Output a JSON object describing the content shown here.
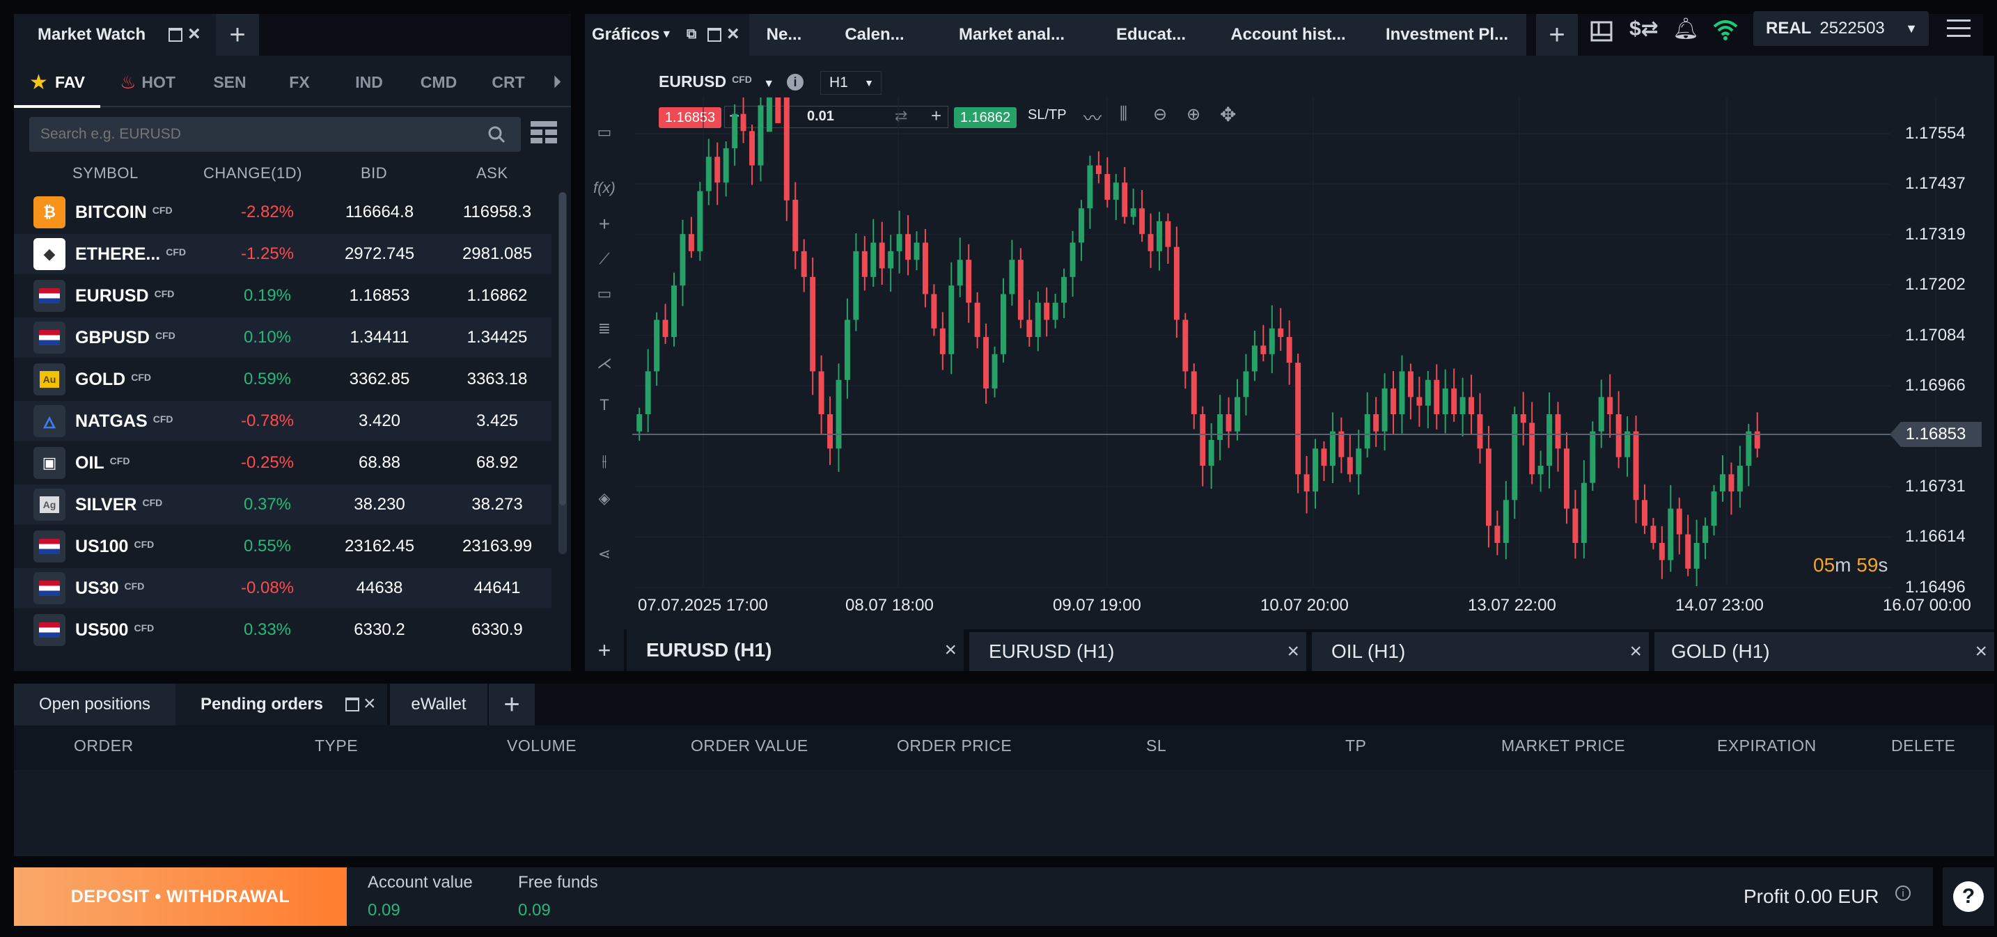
{
  "market_watch": {
    "title": "Market Watch",
    "categories": [
      "FAV",
      "HOT",
      "SEN",
      "FX",
      "IND",
      "CMD",
      "CRT"
    ],
    "search_placeholder": "Search e.g. EURUSD",
    "columns": [
      "SYMBOL",
      "CHANGE(1D)",
      "BID",
      "ASK"
    ],
    "cfd_tag": "CFD",
    "rows": [
      {
        "symbol": "BITCOIN",
        "change": "-2.82%",
        "dir": "neg",
        "bid": "116664.8",
        "ask": "116958.3",
        "icon": "bitcoin-icon",
        "glyph": "₿",
        "bg": "#f7931a"
      },
      {
        "symbol": "ETHERE...",
        "change": "-1.25%",
        "dir": "neg",
        "bid": "2972.745",
        "ask": "2981.085",
        "icon": "ethereum-icon",
        "glyph": "◆",
        "bg": "#ffffff"
      },
      {
        "symbol": "EURUSD",
        "change": "0.19%",
        "dir": "pos",
        "bid": "1.16853",
        "ask": "1.16862",
        "icon": "eu-us-flag-icon",
        "glyph": "",
        "bg": "#2a3340"
      },
      {
        "symbol": "GBPUSD",
        "change": "0.10%",
        "dir": "pos",
        "bid": "1.34411",
        "ask": "1.34425",
        "icon": "gb-us-flag-icon",
        "glyph": "",
        "bg": "#2a3340"
      },
      {
        "symbol": "GOLD",
        "change": "0.59%",
        "dir": "pos",
        "bid": "3362.85",
        "ask": "3363.18",
        "icon": "gold-icon",
        "glyph": "Au",
        "bg": "#2a3340"
      },
      {
        "symbol": "NATGAS",
        "change": "-0.78%",
        "dir": "neg",
        "bid": "3.420",
        "ask": "3.425",
        "icon": "flame-icon",
        "glyph": "▲",
        "bg": "#2a3340"
      },
      {
        "symbol": "OIL",
        "change": "-0.25%",
        "dir": "neg",
        "bid": "68.88",
        "ask": "68.92",
        "icon": "oil-barrel-icon",
        "glyph": "▣",
        "bg": "#2a3340"
      },
      {
        "symbol": "SILVER",
        "change": "0.37%",
        "dir": "pos",
        "bid": "38.230",
        "ask": "38.273",
        "icon": "silver-icon",
        "glyph": "Ag",
        "bg": "#2a3340"
      },
      {
        "symbol": "US100",
        "change": "0.55%",
        "dir": "pos",
        "bid": "23162.45",
        "ask": "23163.99",
        "icon": "us-flag-icon",
        "glyph": "",
        "bg": "#2a3340"
      },
      {
        "symbol": "US30",
        "change": "-0.08%",
        "dir": "neg",
        "bid": "44638",
        "ask": "44641",
        "icon": "us-flag-icon",
        "glyph": "",
        "bg": "#2a3340"
      },
      {
        "symbol": "US500",
        "change": "0.33%",
        "dir": "pos",
        "bid": "6330.2",
        "ask": "6330.9",
        "icon": "us-flag-icon",
        "glyph": "",
        "bg": "#2a3340"
      }
    ]
  },
  "top_tabs": [
    "Gráficos",
    "Ne...",
    "Calen...",
    "Market anal...",
    "Educat...",
    "Account hist...",
    "Investment Pl..."
  ],
  "account": {
    "mode": "REAL",
    "number": "2522503"
  },
  "chart_toolbar": {
    "symbol": "EURUSD",
    "tag": "CFD",
    "timeframe": "H1",
    "sell_price": "1.16853",
    "buy_price": "1.16862",
    "volume": "0.01",
    "sltp": "SL/TP"
  },
  "chart_data": {
    "type": "candlestick",
    "symbol": "EURUSD",
    "timeframe": "H1",
    "y_ticks": [
      "1.17554",
      "1.17437",
      "1.17319",
      "1.17202",
      "1.17084",
      "1.16966",
      "1.16853",
      "1.16731",
      "1.16614",
      "1.16496"
    ],
    "ylim": [
      1.16496,
      1.17554
    ],
    "x_ticks": [
      "07.07.2025 17:00",
      "08.07 18:00",
      "09.07 19:00",
      "10.07 20:00",
      "13.07 22:00",
      "14.07 23:00",
      "16.07 00:00"
    ],
    "current_price": "1.16853",
    "countdown": {
      "min": "05",
      "min_unit": "m",
      "sec": "59",
      "sec_unit": "s"
    },
    "bull_color": "#26a269",
    "bear_color": "#ef4b55",
    "closes": [
      1.169,
      1.17,
      1.1712,
      1.1708,
      1.172,
      1.1732,
      1.1728,
      1.1742,
      1.175,
      1.1744,
      1.1752,
      1.176,
      1.1756,
      1.1748,
      1.1762,
      1.177,
      1.1764,
      1.174,
      1.1728,
      1.1722,
      1.17,
      1.169,
      1.1682,
      1.1698,
      1.1712,
      1.1728,
      1.1722,
      1.173,
      1.1724,
      1.1728,
      1.1732,
      1.1726,
      1.173,
      1.1718,
      1.171,
      1.1704,
      1.172,
      1.1726,
      1.1716,
      1.1708,
      1.1696,
      1.1704,
      1.1718,
      1.1726,
      1.1712,
      1.1708,
      1.1716,
      1.1712,
      1.1716,
      1.1722,
      1.173,
      1.1738,
      1.1748,
      1.1746,
      1.174,
      1.1744,
      1.1736,
      1.1738,
      1.1732,
      1.1728,
      1.1735,
      1.1729,
      1.1712,
      1.17,
      1.169,
      1.1678,
      1.1684,
      1.169,
      1.1686,
      1.1694,
      1.17,
      1.1706,
      1.1704,
      1.171,
      1.1708,
      1.1702,
      1.1676,
      1.1672,
      1.1682,
      1.1678,
      1.1686,
      1.168,
      1.1676,
      1.1682,
      1.169,
      1.1686,
      1.1696,
      1.169,
      1.17,
      1.1694,
      1.1692,
      1.1698,
      1.169,
      1.1696,
      1.169,
      1.1694,
      1.169,
      1.1682,
      1.1664,
      1.166,
      1.167,
      1.169,
      1.1688,
      1.1676,
      1.1678,
      1.169,
      1.1682,
      1.1668,
      1.166,
      1.1674,
      1.1686,
      1.1694,
      1.169,
      1.168,
      1.1686,
      1.167,
      1.1664,
      1.166,
      1.1656,
      1.1668,
      1.1662,
      1.1654,
      1.166,
      1.1664,
      1.1672,
      1.1676,
      1.1672,
      1.1678,
      1.1686,
      1.1682
    ]
  },
  "chart_tabs": [
    "EURUSD (H1)",
    "EURUSD (H1)",
    "OIL (H1)",
    "GOLD (H1)"
  ],
  "bottom_tabs": [
    "Open positions",
    "Pending orders",
    "eWallet"
  ],
  "orders_columns": [
    "ORDER",
    "TYPE",
    "VOLUME",
    "ORDER VALUE",
    "ORDER PRICE",
    "SL",
    "TP",
    "MARKET PRICE",
    "EXPIRATION",
    "DELETE"
  ],
  "footer": {
    "deposit_label": "DEPOSIT • WITHDRAWAL",
    "account_value_label": "Account value",
    "account_value": "0.09",
    "free_funds_label": "Free funds",
    "free_funds": "0.09",
    "profit_label": "Profit 0.00 EUR",
    "help": "?"
  }
}
